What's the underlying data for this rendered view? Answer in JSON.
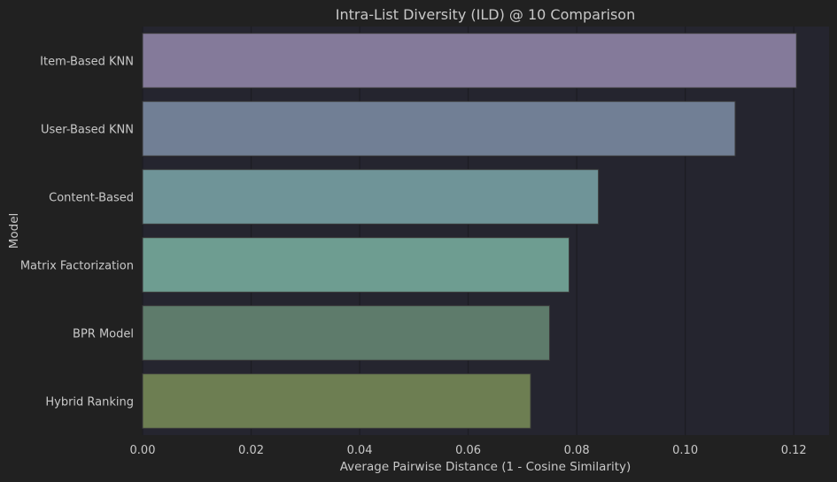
{
  "chart_data": {
    "type": "bar",
    "orientation": "horizontal",
    "title": "Intra-List Diversity (ILD) @ 10 Comparison",
    "xlabel": "Average Pairwise Distance (1 - Cosine Similarity)",
    "ylabel": "Model",
    "categories": [
      "Item-Based KNN",
      "User-Based KNN",
      "Content-Based",
      "Matrix Factorization",
      "BPR Model",
      "Hybrid Ranking"
    ],
    "values": [
      0.1205,
      0.1092,
      0.084,
      0.0786,
      0.075,
      0.0715
    ],
    "colors": [
      "#847a9a",
      "#717f95",
      "#6f9498",
      "#6e9d91",
      "#5e7b6b",
      "#6d7e52"
    ],
    "xlim": [
      0,
      0.1265
    ],
    "xticks": [
      "0.00",
      "0.02",
      "0.04",
      "0.06",
      "0.08",
      "0.10",
      "0.12"
    ],
    "grid": true,
    "colors_theme": {
      "background": "#212121",
      "plot_background": "#25252f",
      "text": "#c8c8c8",
      "grid": "#1c1c22"
    }
  }
}
